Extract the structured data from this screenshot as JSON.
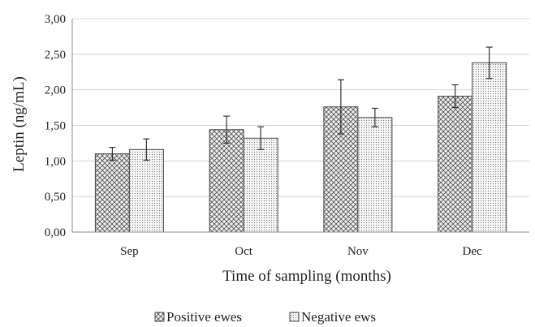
{
  "chart_data": {
    "type": "bar",
    "title": "",
    "xlabel": "Time of sampling (months)",
    "ylabel": "Leptin (ng/mL)",
    "ylim": [
      0,
      3
    ],
    "yticks": [
      "0,00",
      "0,50",
      "1,00",
      "1,50",
      "2,00",
      "2,50",
      "3,00"
    ],
    "categories": [
      "Sep",
      "Oct",
      "Nov",
      "Dec"
    ],
    "grid": true,
    "legend_position": "bottom",
    "series": [
      {
        "name": "Positive ewes",
        "pattern": "crosshatch",
        "values": [
          1.1,
          1.44,
          1.76,
          1.91
        ],
        "errors": [
          0.09,
          0.19,
          0.38,
          0.16
        ]
      },
      {
        "name": "Negative ews",
        "pattern": "dotted",
        "values": [
          1.16,
          1.32,
          1.61,
          2.38
        ],
        "errors": [
          0.15,
          0.16,
          0.13,
          0.22
        ]
      }
    ]
  }
}
